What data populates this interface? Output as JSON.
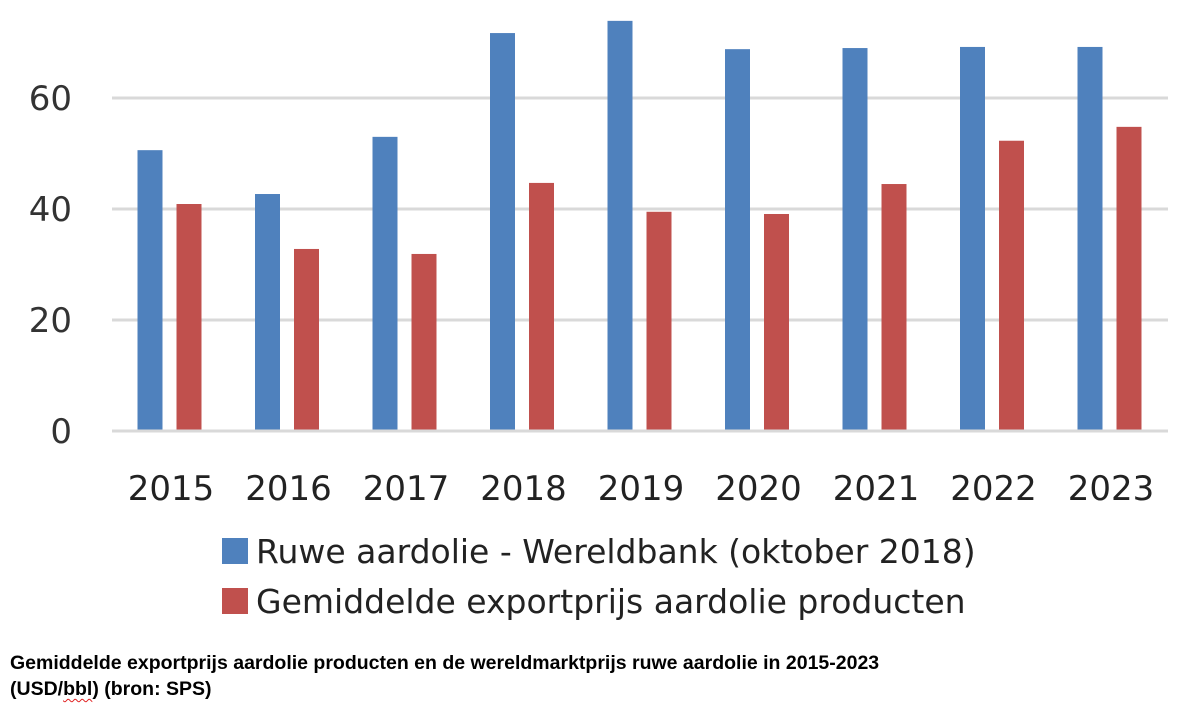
{
  "chart_data": {
    "type": "bar",
    "title": "",
    "xlabel": "",
    "ylabel": "",
    "categories": [
      "2015",
      "2016",
      "2017",
      "2018",
      "2019",
      "2020",
      "2021",
      "2022",
      "2023"
    ],
    "series": [
      {
        "name": "Ruwe aardolie - Wereldbank (oktober 2018)",
        "color": "#4f81bd",
        "values": [
          50.6,
          42.7,
          53.0,
          71.7,
          73.9,
          68.8,
          69.0,
          69.2,
          69.2
        ]
      },
      {
        "name": "Gemiddelde exportprijs aardolie producten",
        "color": "#c0504d",
        "values": [
          40.9,
          32.8,
          31.9,
          44.7,
          39.5,
          39.1,
          44.5,
          52.3,
          54.8
        ]
      }
    ],
    "yticks": [
      "0",
      "20",
      "40",
      "60",
      "80"
    ],
    "ylim": [
      0,
      80
    ],
    "grid": true,
    "legend_position": "bottom"
  },
  "caption": {
    "line1": "Gemiddelde exportprijs aardolie producten en de wereldmarktprijs ruwe aardolie in 2015-2023",
    "line2_pre": "(USD/",
    "line2_underlined": "bbl",
    "line2_post": ") (bron: SPS)"
  }
}
